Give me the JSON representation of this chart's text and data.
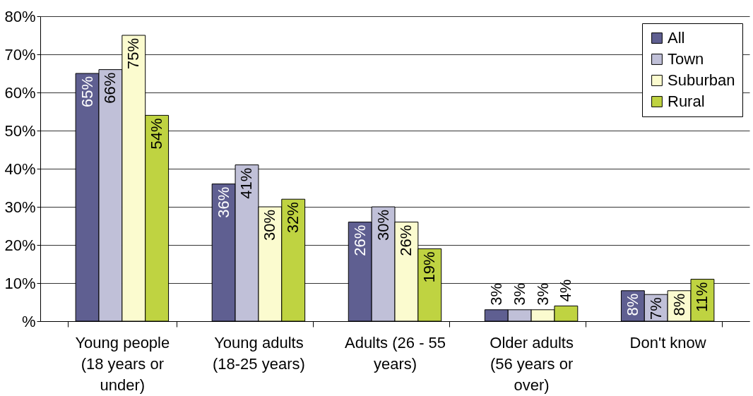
{
  "chart_data": {
    "type": "bar",
    "categories": [
      "Young people (18 years or under)",
      "Young adults (18-25 years)",
      "Adults (26 - 55 years)",
      "Older adults (56 years or over)",
      "Don't know"
    ],
    "series": [
      {
        "name": "All",
        "color": "#5f5f91",
        "values": [
          65,
          36,
          26,
          3,
          8
        ],
        "value_labels": [
          "65%",
          "36%",
          "26%",
          "3%",
          "8%"
        ]
      },
      {
        "name": "Town",
        "color": "#c0c0d8",
        "values": [
          66,
          41,
          30,
          3,
          7
        ],
        "value_labels": [
          "66%",
          "41%",
          "30%",
          "3%",
          "7%"
        ]
      },
      {
        "name": "Suburban",
        "color": "#fbfbcf",
        "values": [
          75,
          30,
          26,
          3,
          8
        ],
        "value_labels": [
          "75%",
          "30%",
          "26%",
          "3%",
          "8%"
        ]
      },
      {
        "name": "Rural",
        "color": "#bfd341",
        "values": [
          54,
          32,
          19,
          4,
          11
        ],
        "value_labels": [
          "54%",
          "32%",
          "19%",
          "4%",
          "11%"
        ]
      }
    ],
    "ylim": [
      0,
      80
    ],
    "yticks": [
      {
        "value": 0,
        "label": "%"
      },
      {
        "value": 10,
        "label": "10%"
      },
      {
        "value": 20,
        "label": "20%"
      },
      {
        "value": 30,
        "label": "30%"
      },
      {
        "value": 40,
        "label": "40%"
      },
      {
        "value": 50,
        "label": "50%"
      },
      {
        "value": 60,
        "label": "60%"
      },
      {
        "value": 70,
        "label": "70%"
      },
      {
        "value": 80,
        "label": "80%"
      }
    ],
    "grid": "y",
    "legend": "top right"
  }
}
